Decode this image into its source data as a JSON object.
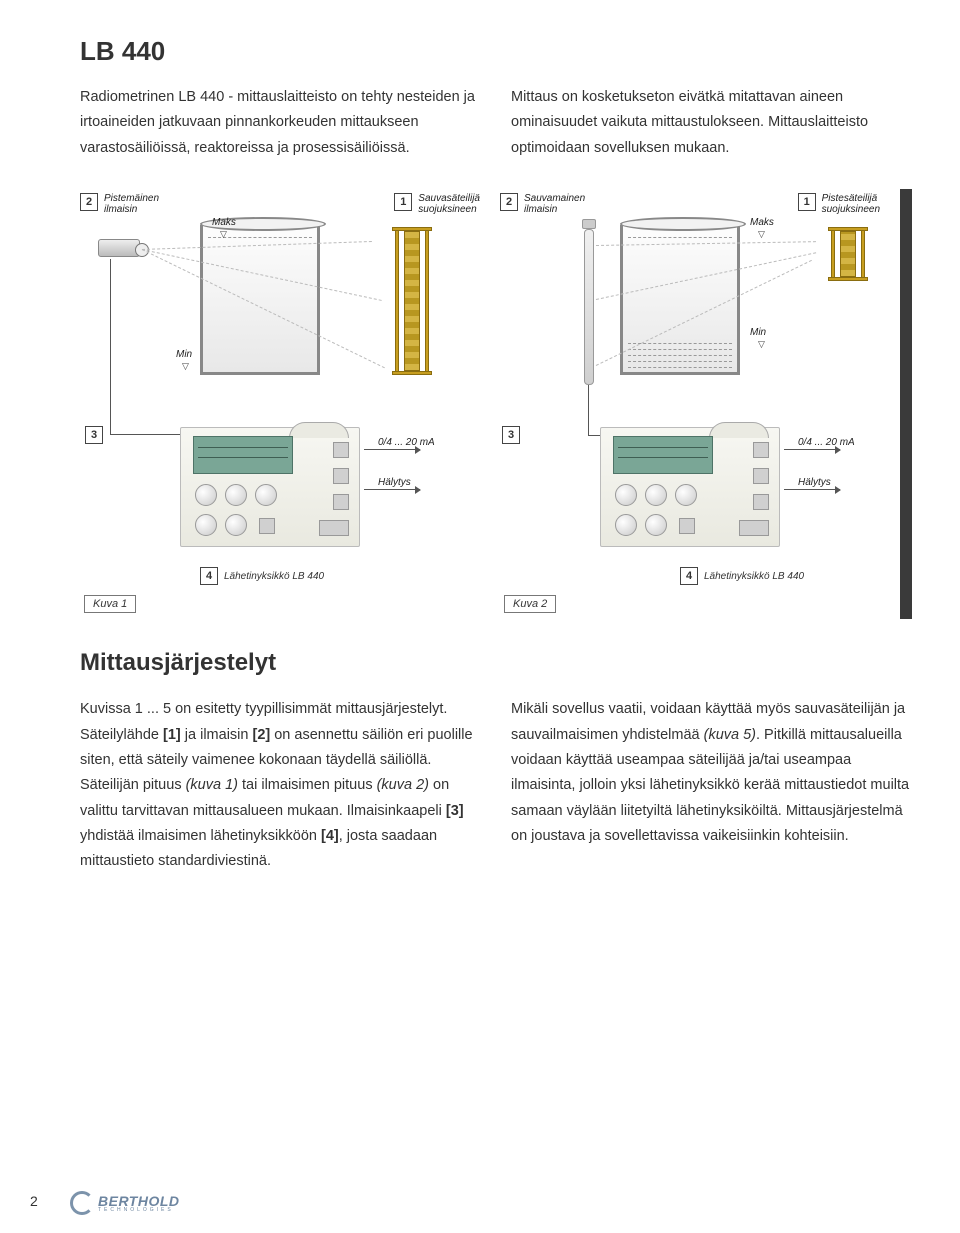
{
  "doc": {
    "title": "LB 440",
    "page_number": "2",
    "logo": {
      "brand": "BERTHOLD",
      "sub": "TECHNOLOGIES"
    }
  },
  "intro": {
    "left": "Radiometrinen LB 440 - mittauslaitteisto on tehty nesteiden ja irtoaineiden jatkuvaan pinnankorkeuden mittaukseen varastosäiliöissä, reaktoreissa ja prosessisäiliöissä.",
    "right": "Mittaus on kosketukseton eivätkä mitattavan aineen ominaisuudet vaikuta mittaustulokseen. Mittauslaitteisto optimoidaan sovelluksen mukaan."
  },
  "diagrams": {
    "left": {
      "type": "schematic",
      "detector_num": "2",
      "detector_label_line1": "Pistemäinen",
      "detector_label_line2": "ilmaisin",
      "source_num": "1",
      "source_label_line1": "Sauvasäteilijä",
      "source_label_line2": "suojuksineen",
      "maks": "Maks",
      "min": "Min",
      "unit_num_a": "3",
      "output_ma": "0/4 ... 20 mA",
      "output_alarm": "Hälytys",
      "unit_num_b": "4",
      "unit_caption": "Lähetinyksikkö LB 440",
      "figure_caption": "Kuva 1"
    },
    "right": {
      "type": "schematic",
      "detector_num": "2",
      "detector_label_line1": "Sauvamainen",
      "detector_label_line2": "ilmaisin",
      "source_num": "1",
      "source_label_line1": "Pistesäteilijä",
      "source_label_line2": "suojuksineen",
      "maks": "Maks",
      "min": "Min",
      "unit_num_a": "3",
      "output_ma": "0/4 ... 20 mA",
      "output_alarm": "Hälytys",
      "unit_num_b": "4",
      "unit_caption": "Lähetinyksikkö LB 440",
      "figure_caption": "Kuva 2"
    },
    "colors": {
      "rod_source_fill": "#d4b544",
      "rod_source_dark": "#b89720",
      "tank_border": "#888888",
      "screen_bg": "#7aa696",
      "beam_color": "#bbbbbb",
      "text_color": "#222222"
    }
  },
  "section": {
    "title": "Mittausjärjestelyt",
    "left_html": "Kuvissa 1 ... 5 on esitetty tyypillisimmät mittausjärjestelyt. Säteilylähde <b class='b'>[1]</b> ja ilmaisin <b class='b'>[2]</b> on asennettu säiliön eri puolille siten, että säteily vaimenee kokonaan täydellä säiliöllä. Säteilijän pituus <em class='i'>(kuva 1)</em> tai ilmaisimen pituus <em class='i'>(kuva 2)</em> on valittu tarvittavan mittausalueen mukaan. Ilmaisinkaapeli <b class='b'>[3]</b> yhdistää ilmaisimen lähetinyksikköön <b class='b'>[4]</b>, josta saadaan mittaustieto standardiviestinä.",
    "right_html": "Mikäli sovellus vaatii, voidaan käyttää myös sauvasäteilijän ja sauvailmaisimen yhdistelmää <em class='i'>(kuva 5)</em>. Pitkillä mittausalueilla voidaan käyttää useampaa säteilijää ja/tai useampaa ilmaisinta, jolloin yksi lähetinyksikkö kerää mittaustiedot muilta samaan väylään liitetyiltä lähetinyksiköiltä. Mittausjärjestelmä on joustava ja sovellettavissa vaikeisiinkin kohteisiin."
  }
}
